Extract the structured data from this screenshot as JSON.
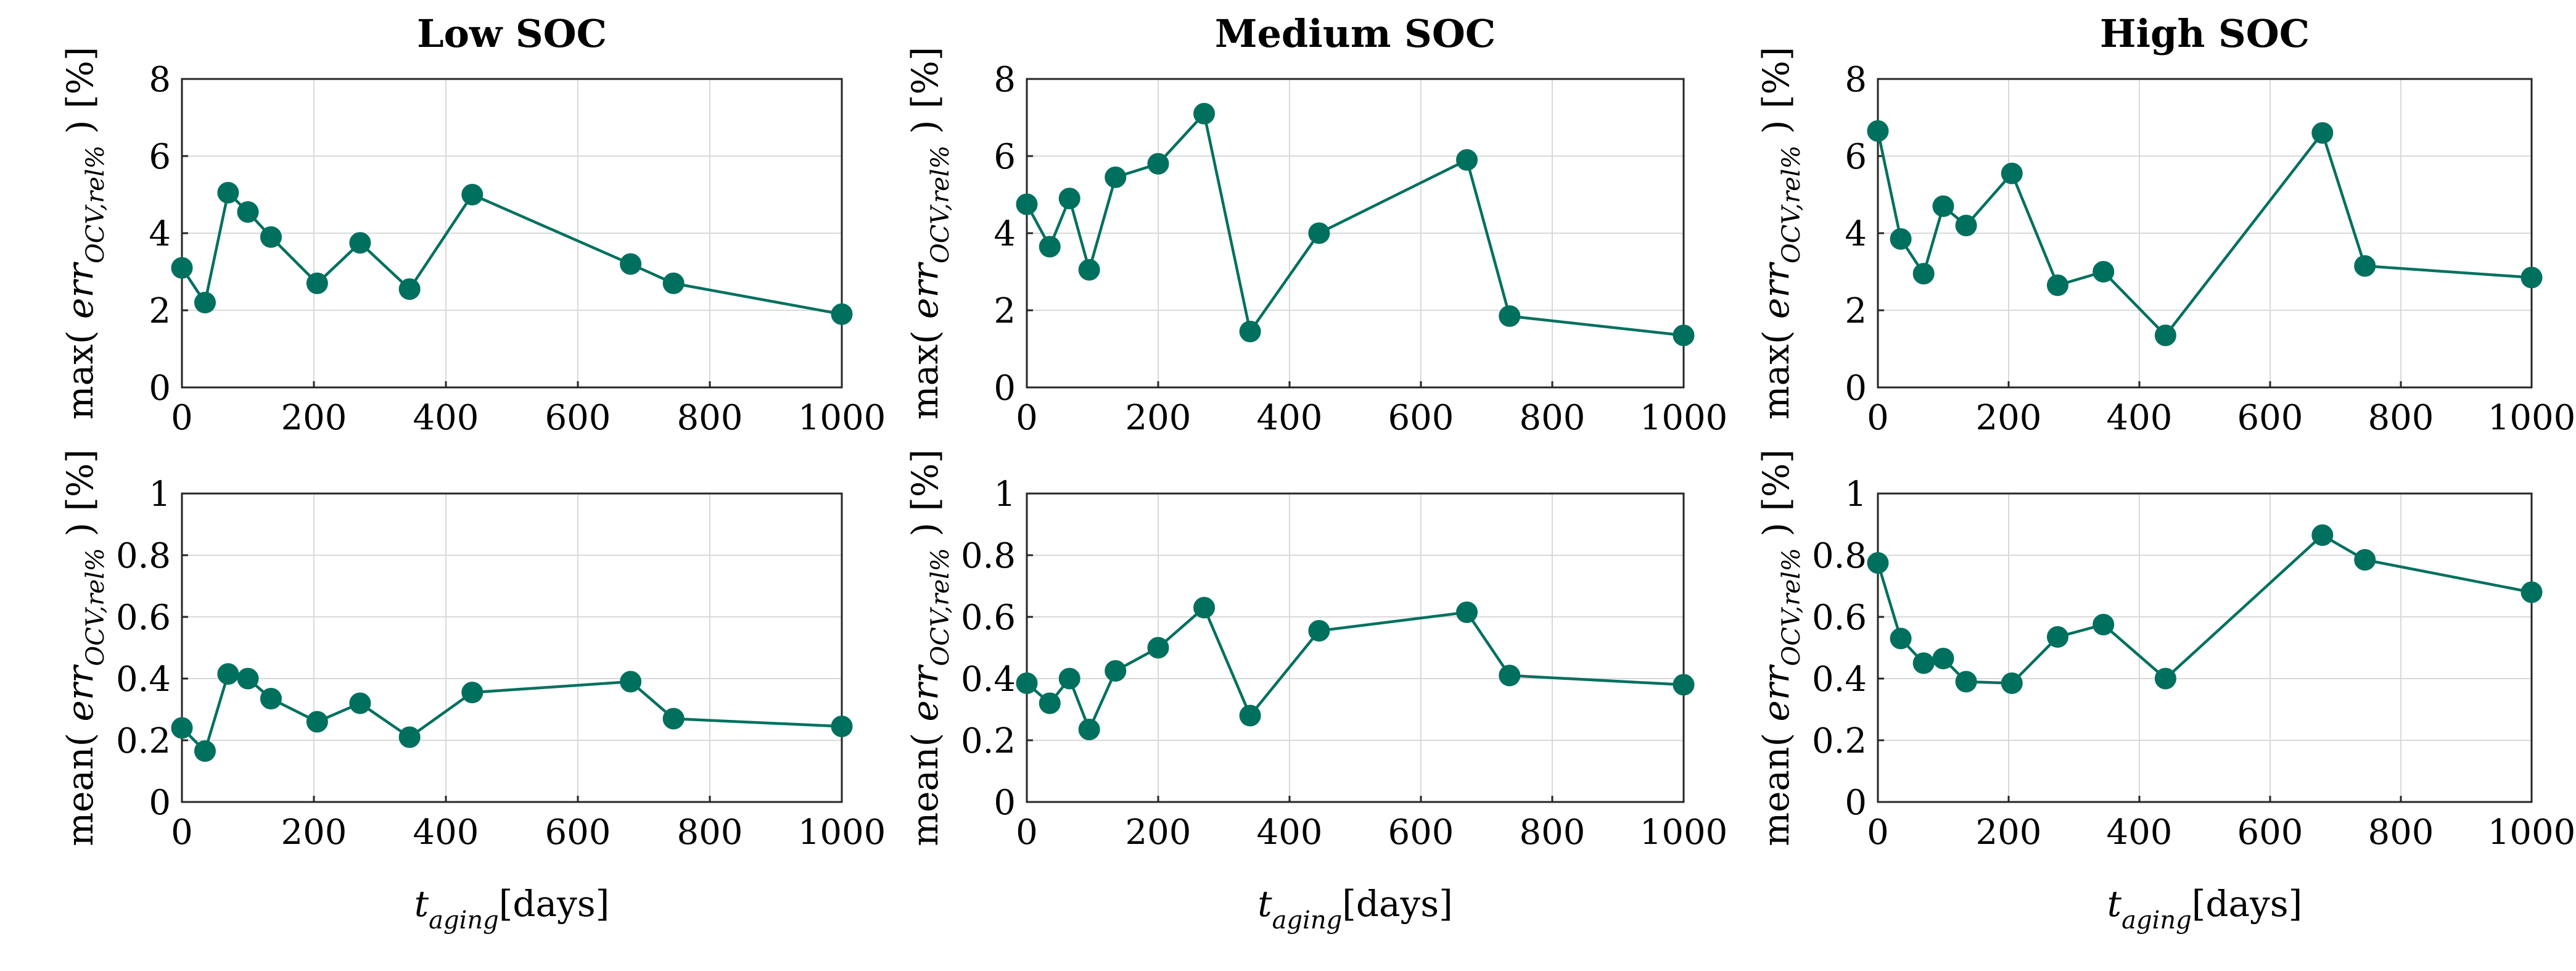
{
  "chart_data": [
    {
      "type": "line",
      "id": "p-low-max",
      "title": "Low SOC",
      "ylabel": {
        "prefix": "max( ",
        "var": "err",
        "sub": "OCV,rel%",
        "suffix": " ) [%]"
      },
      "xlabel": {
        "var": "t",
        "sub": "aging",
        "unit": "[days]"
      },
      "xlim": [
        0,
        1000
      ],
      "ylim": [
        0,
        8
      ],
      "xticks": [
        "0",
        "200",
        "400",
        "600",
        "800",
        "1000"
      ],
      "yticks": [
        "0",
        "2",
        "4",
        "6",
        "8"
      ],
      "x": [
        0,
        35,
        70,
        100,
        135,
        205,
        270,
        345,
        440,
        680,
        745,
        1000
      ],
      "y": [
        3.1,
        2.2,
        5.05,
        4.55,
        3.9,
        2.7,
        3.75,
        2.55,
        5.0,
        3.2,
        2.7,
        1.9
      ]
    },
    {
      "type": "line",
      "id": "p-med-max",
      "title": "Medium SOC",
      "ylabel": {
        "prefix": "max( ",
        "var": "err",
        "sub": "OCV,rel%",
        "suffix": " ) [%]"
      },
      "xlabel": {
        "var": "t",
        "sub": "aging",
        "unit": "[days]"
      },
      "xlim": [
        0,
        1000
      ],
      "ylim": [
        0,
        8
      ],
      "xticks": [
        "0",
        "200",
        "400",
        "600",
        "800",
        "1000"
      ],
      "yticks": [
        "0",
        "2",
        "4",
        "6",
        "8"
      ],
      "x": [
        0,
        35,
        65,
        95,
        135,
        200,
        270,
        340,
        445,
        670,
        735,
        1000
      ],
      "y": [
        4.75,
        3.65,
        4.9,
        3.05,
        5.45,
        5.8,
        7.1,
        1.45,
        4.0,
        5.9,
        1.85,
        1.35
      ]
    },
    {
      "type": "line",
      "id": "p-high-max",
      "title": "High SOC",
      "ylabel": {
        "prefix": "max( ",
        "var": "err",
        "sub": "OCV,rel%",
        "suffix": " ) [%]"
      },
      "xlabel": {
        "var": "t",
        "sub": "aging",
        "unit": "[days]"
      },
      "xlim": [
        0,
        1000
      ],
      "ylim": [
        0,
        8
      ],
      "xticks": [
        "0",
        "200",
        "400",
        "600",
        "800",
        "1000"
      ],
      "yticks": [
        "0",
        "2",
        "4",
        "6",
        "8"
      ],
      "x": [
        0,
        35,
        70,
        100,
        135,
        205,
        275,
        345,
        440,
        680,
        745,
        1000
      ],
      "y": [
        6.65,
        3.85,
        2.95,
        4.7,
        4.2,
        5.55,
        2.65,
        3.0,
        1.35,
        6.6,
        3.15,
        2.85
      ]
    },
    {
      "type": "line",
      "id": "p-low-mean",
      "title": "",
      "ylabel": {
        "prefix": "mean( ",
        "var": "err",
        "sub": "OCV,rel%",
        "suffix": " ) [%]"
      },
      "xlabel": {
        "var": "t",
        "sub": "aging",
        "unit": "[days]"
      },
      "xlim": [
        0,
        1000
      ],
      "ylim": [
        0,
        1
      ],
      "xticks": [
        "0",
        "200",
        "400",
        "600",
        "800",
        "1000"
      ],
      "yticks": [
        "0",
        "0.2",
        "0.4",
        "0.6",
        "0.8",
        "1"
      ],
      "x": [
        0,
        35,
        70,
        100,
        135,
        205,
        270,
        345,
        440,
        680,
        745,
        1000
      ],
      "y": [
        0.24,
        0.165,
        0.415,
        0.4,
        0.335,
        0.26,
        0.32,
        0.21,
        0.355,
        0.39,
        0.27,
        0.245
      ]
    },
    {
      "type": "line",
      "id": "p-med-mean",
      "title": "",
      "ylabel": {
        "prefix": "mean( ",
        "var": "err",
        "sub": "OCV,rel%",
        "suffix": " ) [%]"
      },
      "xlabel": {
        "var": "t",
        "sub": "aging",
        "unit": "[days]"
      },
      "xlim": [
        0,
        1000
      ],
      "ylim": [
        0,
        1
      ],
      "xticks": [
        "0",
        "200",
        "400",
        "600",
        "800",
        "1000"
      ],
      "yticks": [
        "0",
        "0.2",
        "0.4",
        "0.6",
        "0.8",
        "1"
      ],
      "x": [
        0,
        35,
        65,
        95,
        135,
        200,
        270,
        340,
        445,
        670,
        735,
        1000
      ],
      "y": [
        0.385,
        0.32,
        0.4,
        0.235,
        0.425,
        0.5,
        0.63,
        0.28,
        0.555,
        0.615,
        0.41,
        0.38
      ]
    },
    {
      "type": "line",
      "id": "p-high-mean",
      "title": "",
      "ylabel": {
        "prefix": "mean( ",
        "var": "err",
        "sub": "OCV,rel%",
        "suffix": " ) [%]"
      },
      "xlabel": {
        "var": "t",
        "sub": "aging",
        "unit": "[days]"
      },
      "xlim": [
        0,
        1000
      ],
      "ylim": [
        0,
        1
      ],
      "xticks": [
        "0",
        "200",
        "400",
        "600",
        "800",
        "1000"
      ],
      "yticks": [
        "0",
        "0.2",
        "0.4",
        "0.6",
        "0.8",
        "1"
      ],
      "x": [
        0,
        35,
        70,
        100,
        135,
        205,
        275,
        345,
        440,
        680,
        745,
        1000
      ],
      "y": [
        0.775,
        0.53,
        0.45,
        0.465,
        0.39,
        0.385,
        0.535,
        0.575,
        0.4,
        0.865,
        0.785,
        0.68
      ]
    }
  ],
  "style": {
    "line_color": "#00705e",
    "grid_color": "#d9d9d9",
    "axis_color": "#262626"
  }
}
